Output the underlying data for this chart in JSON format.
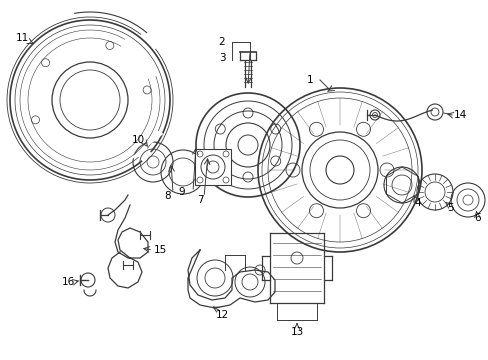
{
  "bg_color": "#ffffff",
  "line_color": "#3a3a3a",
  "label_color": "#000000",
  "figsize": [
    4.89,
    3.6
  ],
  "dpi": 100,
  "lw_main": 0.9,
  "lw_thick": 1.2,
  "lw_thin": 0.6,
  "font_size": 7.5
}
